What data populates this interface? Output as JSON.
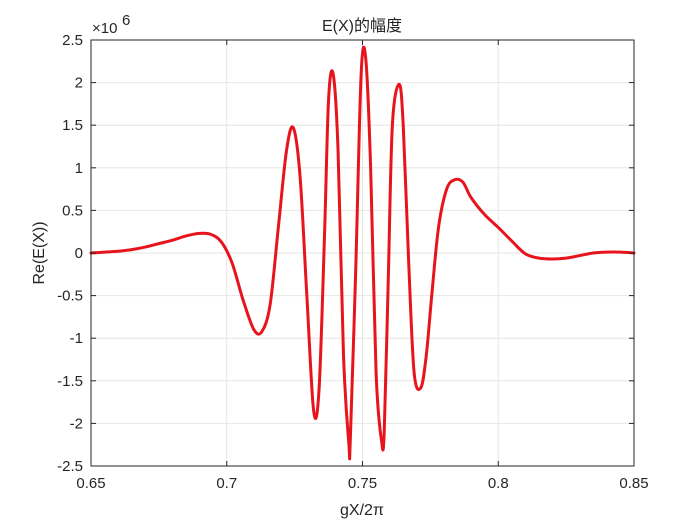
{
  "chart_data": {
    "type": "line",
    "title": "E(X)的幅度",
    "xlabel": "gX/2π",
    "ylabel": "Re(E(X))",
    "y_multiplier": "×10",
    "y_multiplier_exponent": "6",
    "xlim": [
      0.65,
      0.85
    ],
    "ylim": [
      -2.5,
      2.5
    ],
    "ylim_units": "×10^6",
    "x_ticks": [
      0.65,
      0.7,
      0.75,
      0.8,
      0.85
    ],
    "x_tick_labels": [
      "0.65",
      "0.7",
      "0.75",
      "0.8",
      "0.85"
    ],
    "y_ticks": [
      -2.5,
      -2,
      -1.5,
      -1,
      -0.5,
      0,
      0.5,
      1,
      1.5,
      2,
      2.5
    ],
    "y_tick_labels": [
      "-2.5",
      "-2",
      "-1.5",
      "-1",
      "-0.5",
      "0",
      "0.5",
      "1",
      "1.5",
      "2",
      "2.5"
    ],
    "grid": true,
    "series": [
      {
        "color": "#e8141c",
        "x": [
          0.65,
          0.655,
          0.66,
          0.665,
          0.67,
          0.675,
          0.68,
          0.685,
          0.69,
          0.694,
          0.698,
          0.702,
          0.706,
          0.71,
          0.713,
          0.716,
          0.719,
          0.722,
          0.7245,
          0.727,
          0.7295,
          0.732,
          0.734,
          0.736,
          0.7375,
          0.7392,
          0.741,
          0.743,
          0.745,
          0.7455,
          0.7475,
          0.7495,
          0.7512,
          0.753,
          0.755,
          0.757,
          0.758,
          0.7595,
          0.761,
          0.7635,
          0.765,
          0.767,
          0.769,
          0.7715,
          0.7735,
          0.7755,
          0.778,
          0.781,
          0.784,
          0.787,
          0.79,
          0.795,
          0.8,
          0.805,
          0.81,
          0.815,
          0.82,
          0.825,
          0.83,
          0.835,
          0.84,
          0.845,
          0.85
        ],
        "y": [
          0.0,
          0.01,
          0.02,
          0.04,
          0.07,
          0.11,
          0.15,
          0.2,
          0.23,
          0.22,
          0.13,
          -0.12,
          -0.55,
          -0.9,
          -0.92,
          -0.6,
          0.3,
          1.2,
          1.47,
          0.9,
          -0.5,
          -1.85,
          -1.6,
          0.2,
          1.8,
          2.1,
          1.2,
          -1.2,
          -2.25,
          -2.2,
          -0.2,
          2.1,
          2.28,
          1.0,
          -1.4,
          -2.2,
          -2.1,
          -0.3,
          1.5,
          1.98,
          1.5,
          -0.1,
          -1.4,
          -1.58,
          -1.2,
          -0.5,
          0.3,
          0.75,
          0.86,
          0.83,
          0.65,
          0.45,
          0.3,
          0.14,
          -0.01,
          -0.06,
          -0.07,
          -0.06,
          -0.03,
          0.0,
          0.01,
          0.01,
          0.0
        ]
      }
    ]
  }
}
